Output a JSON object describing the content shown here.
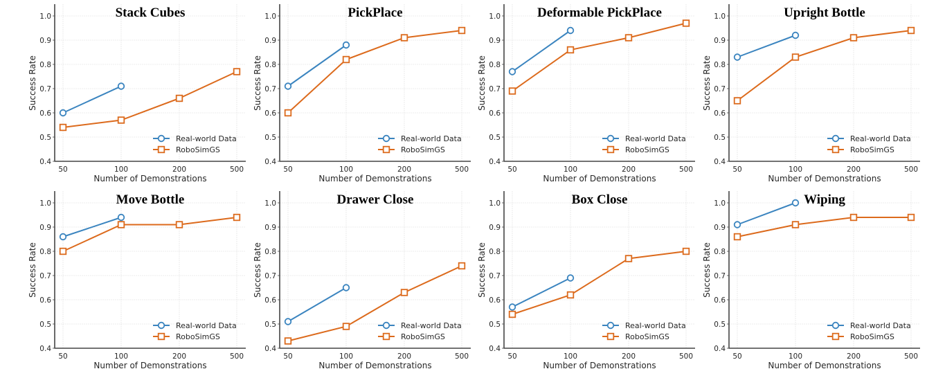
{
  "chart_data": [
    {
      "type": "line",
      "title": "Stack Cubes",
      "xlabel": "Number of Demonstrations",
      "ylabel": "Success Rate",
      "categories": [
        "50",
        "100",
        "200",
        "500"
      ],
      "ylim": [
        0.4,
        1.05
      ],
      "yticks": [
        "0.4",
        "0.5",
        "0.6",
        "0.7",
        "0.8",
        "0.9",
        "1.0"
      ],
      "grid": true,
      "legend": "lower-right",
      "series": [
        {
          "name": "Real-world Data",
          "marker": "circle",
          "values": [
            0.6,
            0.71,
            null,
            null
          ]
        },
        {
          "name": "RoboSimGS",
          "marker": "square",
          "values": [
            0.54,
            0.57,
            0.66,
            0.77
          ]
        }
      ]
    },
    {
      "type": "line",
      "title": "PickPlace",
      "xlabel": "Number of Demonstrations",
      "ylabel": "Success Rate",
      "categories": [
        "50",
        "100",
        "200",
        "500"
      ],
      "ylim": [
        0.4,
        1.05
      ],
      "yticks": [
        "0.4",
        "0.5",
        "0.6",
        "0.7",
        "0.8",
        "0.9",
        "1.0"
      ],
      "grid": true,
      "legend": "lower-right",
      "series": [
        {
          "name": "Real-world Data",
          "marker": "circle",
          "values": [
            0.71,
            0.88,
            null,
            null
          ]
        },
        {
          "name": "RoboSimGS",
          "marker": "square",
          "values": [
            0.6,
            0.82,
            0.91,
            0.94
          ]
        }
      ]
    },
    {
      "type": "line",
      "title": "Deformable PickPlace",
      "xlabel": "Number of Demonstrations",
      "ylabel": "Success Rate",
      "categories": [
        "50",
        "100",
        "200",
        "500"
      ],
      "ylim": [
        0.4,
        1.05
      ],
      "yticks": [
        "0.4",
        "0.5",
        "0.6",
        "0.7",
        "0.8",
        "0.9",
        "1.0"
      ],
      "grid": true,
      "legend": "lower-right",
      "series": [
        {
          "name": "Real-world Data",
          "marker": "circle",
          "values": [
            0.77,
            0.94,
            null,
            null
          ]
        },
        {
          "name": "RoboSimGS",
          "marker": "square",
          "values": [
            0.69,
            0.86,
            0.91,
            0.97
          ]
        }
      ]
    },
    {
      "type": "line",
      "title": "Upright Bottle",
      "xlabel": "Number of Demonstrations",
      "ylabel": "Success Rate",
      "categories": [
        "50",
        "100",
        "200",
        "500"
      ],
      "ylim": [
        0.4,
        1.05
      ],
      "yticks": [
        "0.4",
        "0.5",
        "0.6",
        "0.7",
        "0.8",
        "0.9",
        "1.0"
      ],
      "grid": true,
      "legend": "lower-right",
      "series": [
        {
          "name": "Real-world Data",
          "marker": "circle",
          "values": [
            0.83,
            0.92,
            null,
            null
          ]
        },
        {
          "name": "RoboSimGS",
          "marker": "square",
          "values": [
            0.65,
            0.83,
            0.91,
            0.94
          ]
        }
      ]
    },
    {
      "type": "line",
      "title": "Move Bottle",
      "xlabel": "Number of Demonstrations",
      "ylabel": "Success Rate",
      "categories": [
        "50",
        "100",
        "200",
        "500"
      ],
      "ylim": [
        0.4,
        1.05
      ],
      "yticks": [
        "0.4",
        "0.5",
        "0.6",
        "0.7",
        "0.8",
        "0.9",
        "1.0"
      ],
      "grid": true,
      "legend": "lower-right",
      "series": [
        {
          "name": "Real-world Data",
          "marker": "circle",
          "values": [
            0.86,
            0.94,
            null,
            null
          ]
        },
        {
          "name": "RoboSimGS",
          "marker": "square",
          "values": [
            0.8,
            0.91,
            0.91,
            0.94
          ]
        }
      ]
    },
    {
      "type": "line",
      "title": "Drawer Close",
      "xlabel": "Number of Demonstrations",
      "ylabel": "Success Rate",
      "categories": [
        "50",
        "100",
        "200",
        "500"
      ],
      "ylim": [
        0.4,
        1.05
      ],
      "yticks": [
        "0.4",
        "0.5",
        "0.6",
        "0.7",
        "0.8",
        "0.9",
        "1.0"
      ],
      "grid": true,
      "legend": "lower-right",
      "series": [
        {
          "name": "Real-world Data",
          "marker": "circle",
          "values": [
            0.51,
            0.65,
            null,
            null
          ]
        },
        {
          "name": "RoboSimGS",
          "marker": "square",
          "values": [
            0.43,
            0.49,
            0.63,
            0.74
          ]
        }
      ]
    },
    {
      "type": "line",
      "title": "Box Close",
      "xlabel": "Number of Demonstrations",
      "ylabel": "Success Rate",
      "categories": [
        "50",
        "100",
        "200",
        "500"
      ],
      "ylim": [
        0.4,
        1.05
      ],
      "yticks": [
        "0.4",
        "0.5",
        "0.6",
        "0.7",
        "0.8",
        "0.9",
        "1.0"
      ],
      "grid": true,
      "legend": "lower-right",
      "series": [
        {
          "name": "Real-world Data",
          "marker": "circle",
          "values": [
            0.57,
            0.69,
            null,
            null
          ]
        },
        {
          "name": "RoboSimGS",
          "marker": "square",
          "values": [
            0.54,
            0.62,
            0.77,
            0.8
          ]
        }
      ]
    },
    {
      "type": "line",
      "title": "Wiping",
      "xlabel": "Number of Demonstrations",
      "ylabel": "Success Rate",
      "categories": [
        "50",
        "100",
        "200",
        "500"
      ],
      "ylim": [
        0.4,
        1.05
      ],
      "yticks": [
        "0.4",
        "0.5",
        "0.6",
        "0.7",
        "0.8",
        "0.9",
        "1.0"
      ],
      "grid": true,
      "legend": "lower-right",
      "series": [
        {
          "name": "Real-world Data",
          "marker": "circle",
          "values": [
            0.91,
            1.0,
            null,
            null
          ]
        },
        {
          "name": "RoboSimGS",
          "marker": "square",
          "values": [
            0.86,
            0.91,
            0.94,
            0.94
          ]
        }
      ]
    }
  ],
  "colors": {
    "real_world": "#3a84bf",
    "robosimgs": "#dc6a1c",
    "axis": "#444444",
    "grid": "#e6e6e6",
    "text": "#262626"
  }
}
